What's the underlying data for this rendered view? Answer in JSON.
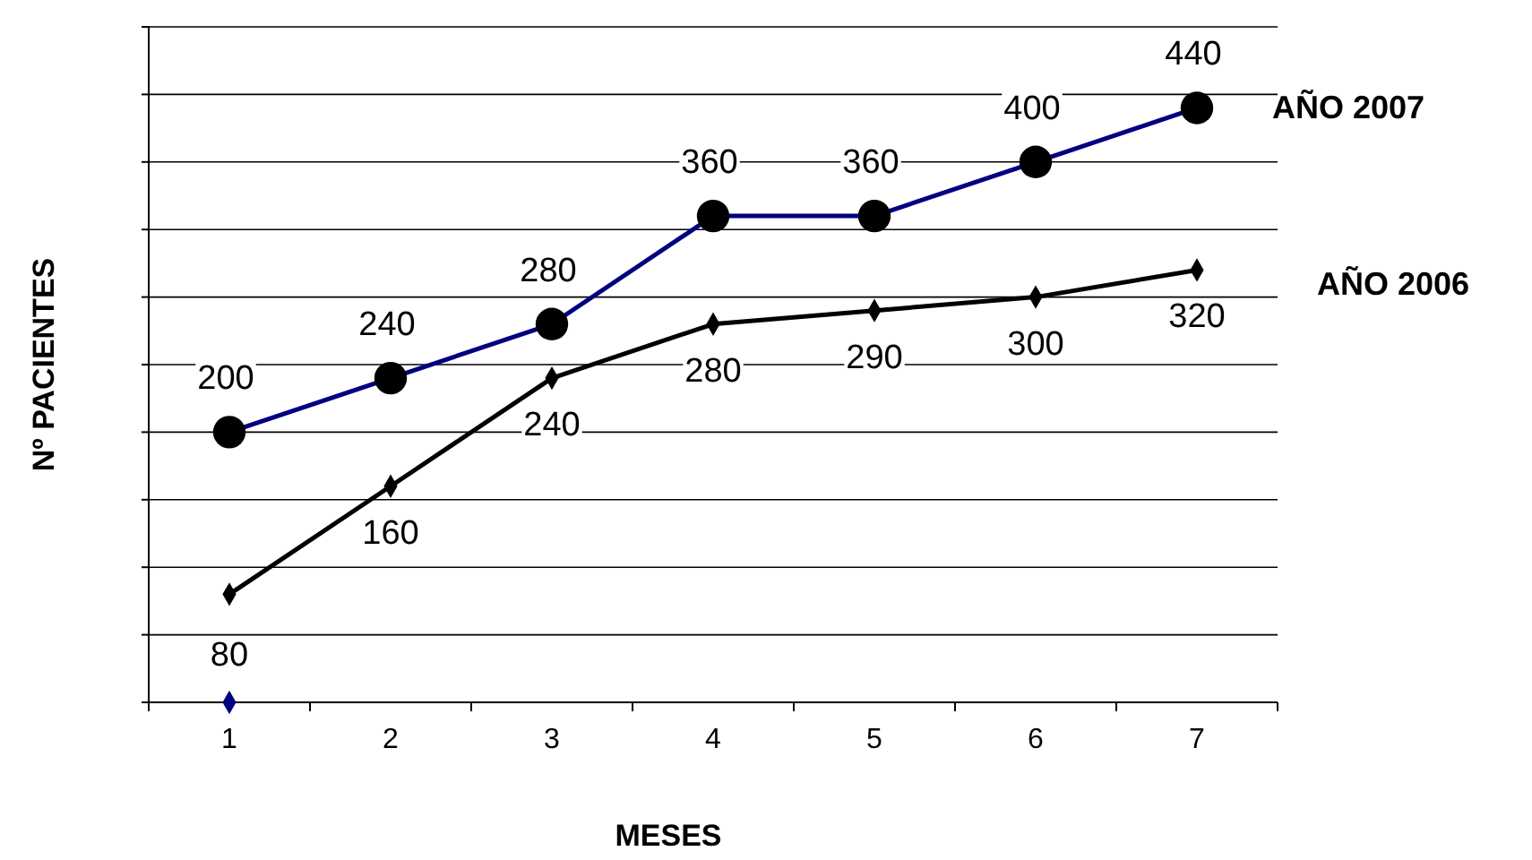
{
  "chart_data": {
    "type": "line",
    "xlabel": "MESES",
    "ylabel": "Nº PACIENTES",
    "categories": [
      "1",
      "2",
      "3",
      "4",
      "5",
      "6",
      "7"
    ],
    "ylim": [
      0,
      500
    ],
    "yticks": [
      {
        "value": 0,
        "label": null
      },
      {
        "value": 50,
        "label": null
      },
      {
        "value": 100,
        "label": null
      },
      {
        "value": 150,
        "label": null
      },
      {
        "value": 200,
        "label": null
      },
      {
        "value": 250,
        "label": null
      },
      {
        "value": 300,
        "label": null
      },
      {
        "value": 350,
        "label": null
      },
      {
        "value": 400,
        "label": null
      },
      {
        "value": 450,
        "label": null
      },
      {
        "value": 500,
        "label": null
      }
    ],
    "tick_labels": "x",
    "grid": "y",
    "legend": false,
    "series": [
      {
        "name": "AÑO 2007",
        "color": "#000080",
        "marker": "circle",
        "values": [
          200,
          240,
          280,
          360,
          360,
          400,
          440
        ],
        "value_labels": [
          "200",
          "240",
          "280",
          "360",
          "360",
          "400",
          "440"
        ]
      },
      {
        "name": "AÑO 2006",
        "color": "#000000",
        "marker": "diamond",
        "values": [
          80,
          160,
          240,
          280,
          290,
          300,
          320
        ],
        "value_labels": [
          "80",
          "160",
          "240",
          "280",
          "290",
          "300",
          "320"
        ]
      },
      {
        "type": "scatter",
        "color": "#000080",
        "marker": "diamond",
        "values": [
          0,
          null,
          null,
          null,
          null,
          null,
          null
        ]
      }
    ]
  }
}
